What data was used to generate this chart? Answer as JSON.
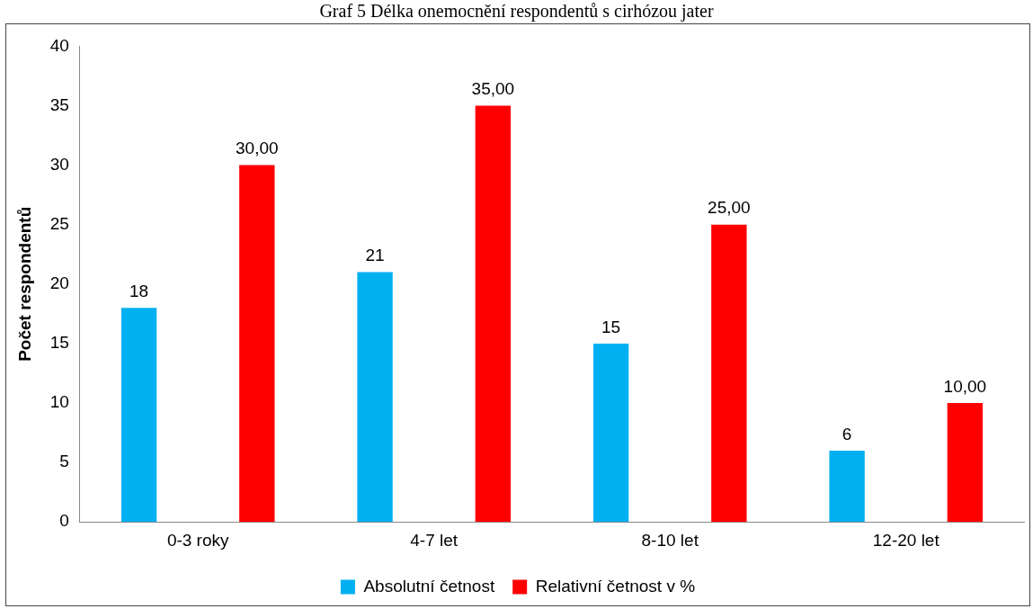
{
  "chart_data": {
    "type": "bar",
    "title": "Graf 5 Délka onemocnění respondentů s cirhózou jater",
    "ylabel": "Počet respondentů",
    "categories": [
      "0-3 roky",
      "4-7 let",
      "8-10 let",
      "12-20 let"
    ],
    "series": [
      {
        "name": "Absolutní četnost",
        "color": "#00b0f0",
        "values": [
          18,
          21,
          15,
          6
        ],
        "value_labels": [
          "18",
          "21",
          "15",
          "6"
        ]
      },
      {
        "name": "Relativní četnost v %",
        "color": "#ff0000",
        "values": [
          30,
          35,
          25,
          10
        ],
        "value_labels": [
          "30,00",
          "35,00",
          "25,00",
          "10,00"
        ]
      }
    ],
    "ylim": [
      0,
      40
    ],
    "yticks": [
      0,
      5,
      10,
      15,
      20,
      25,
      30,
      35,
      40
    ],
    "grid": false,
    "legend": "bottom"
  }
}
